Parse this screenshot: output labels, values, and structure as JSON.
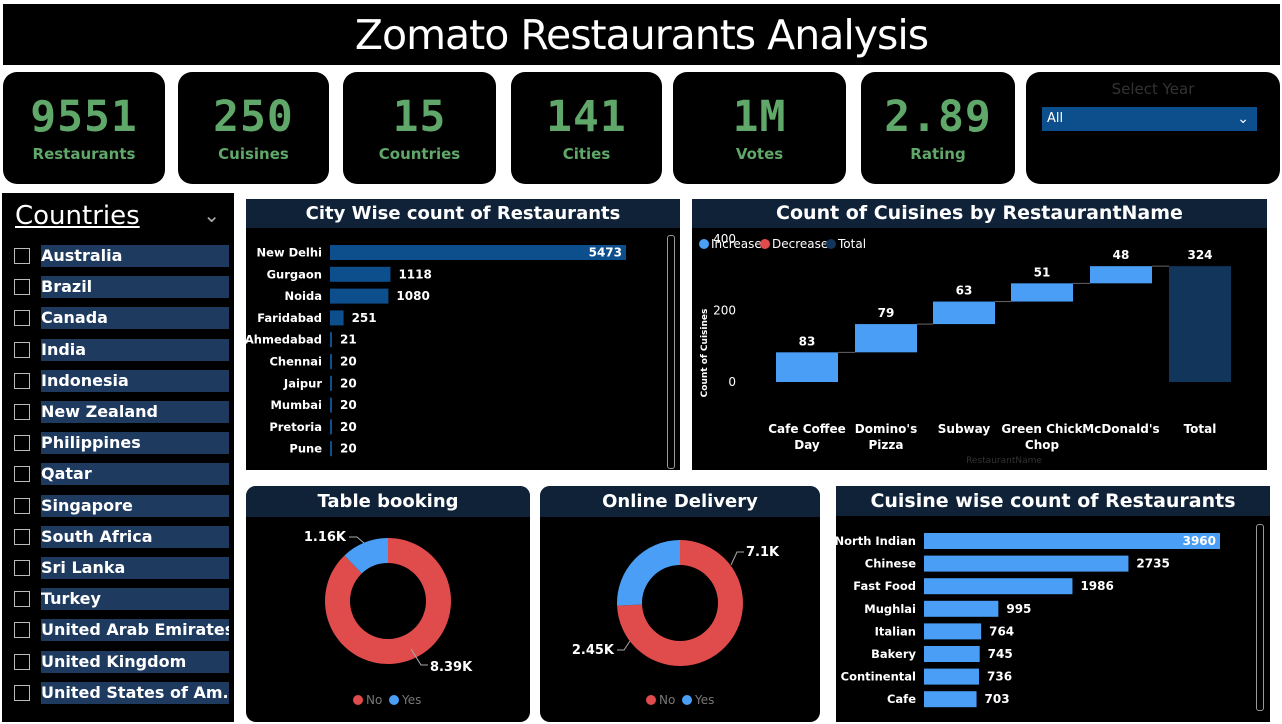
{
  "title": "Zomato Restaurants Analysis",
  "kpis": [
    {
      "value": "9551",
      "label": "Restaurants"
    },
    {
      "value": "250",
      "label": "Cuisines"
    },
    {
      "value": "15",
      "label": "Countries"
    },
    {
      "value": "141",
      "label": "Cities"
    },
    {
      "value": "1M",
      "label": "Votes"
    },
    {
      "value": "2.89",
      "label": "Rating"
    }
  ],
  "year_slicer": {
    "title": "Select Year",
    "selected": "All"
  },
  "countries": {
    "title": "Countries",
    "items": [
      "Australia",
      "Brazil",
      "Canada",
      "India",
      "Indonesia",
      "New Zealand",
      "Philippines",
      "Qatar",
      "Singapore",
      "South Africa",
      "Sri Lanka",
      "Turkey",
      "United Arab Emirates",
      "United Kingdom",
      "United States of Am..."
    ]
  },
  "colors": {
    "accent_green": "#5fa869",
    "bar_dark": "#0d4f8c",
    "bar_light": "#4a9ef5",
    "donut_no": "#e04b4b",
    "donut_yes": "#4a9ef5",
    "total": "#12365b"
  },
  "chart_data": [
    {
      "type": "bar",
      "title": "City Wise count of Restaurants",
      "categories": [
        "New Delhi",
        "Gurgaon",
        "Noida",
        "Faridabad",
        "Ahmedabad",
        "Chennai",
        "Jaipur",
        "Mumbai",
        "Pretoria",
        "Pune"
      ],
      "values": [
        5473,
        1118,
        1080,
        251,
        21,
        20,
        20,
        20,
        20,
        20
      ],
      "orientation": "horizontal"
    },
    {
      "type": "waterfall",
      "title": "Count of Cuisines by RestaurantName",
      "legend": [
        "Increase",
        "Decrease",
        "Total"
      ],
      "categories": [
        "Cafe Coffee Day",
        "Domino's Pizza",
        "Subway",
        "Green Chick Chop",
        "McDonald's",
        "Total"
      ],
      "values": [
        83,
        79,
        63,
        51,
        48,
        324
      ],
      "ylabel": "Count of Cuisines",
      "xlabel": "RestaurantName",
      "yticks": [
        0,
        200,
        400
      ]
    },
    {
      "type": "pie",
      "title": "Table booking",
      "labels": [
        "No",
        "Yes"
      ],
      "values": [
        8390,
        1160
      ],
      "display": [
        "8.39K",
        "1.16K"
      ]
    },
    {
      "type": "pie",
      "title": "Online Delivery",
      "labels": [
        "No",
        "Yes"
      ],
      "values": [
        7100,
        2450
      ],
      "display": [
        "7.1K",
        "2.45K"
      ]
    },
    {
      "type": "bar",
      "title": "Cuisine wise count of Restaurants",
      "categories": [
        "North Indian",
        "Chinese",
        "Fast Food",
        "Mughlai",
        "Italian",
        "Bakery",
        "Continental",
        "Cafe"
      ],
      "values": [
        3960,
        2735,
        1986,
        995,
        764,
        745,
        736,
        703
      ],
      "orientation": "horizontal"
    }
  ]
}
